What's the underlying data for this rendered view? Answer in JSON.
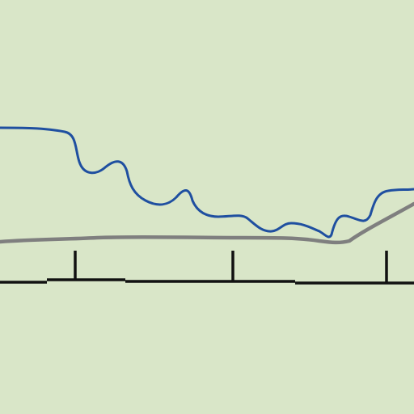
{
  "colors": {
    "background": "#d9e6c8",
    "river": "#1f4fa0",
    "road": "#7f7f7f",
    "scale_bar": "#111111"
  },
  "layers": [
    {
      "name": "river",
      "kind": "line"
    },
    {
      "name": "road",
      "kind": "line"
    },
    {
      "name": "scale-bar",
      "kind": "scale",
      "ticks": 3
    }
  ]
}
